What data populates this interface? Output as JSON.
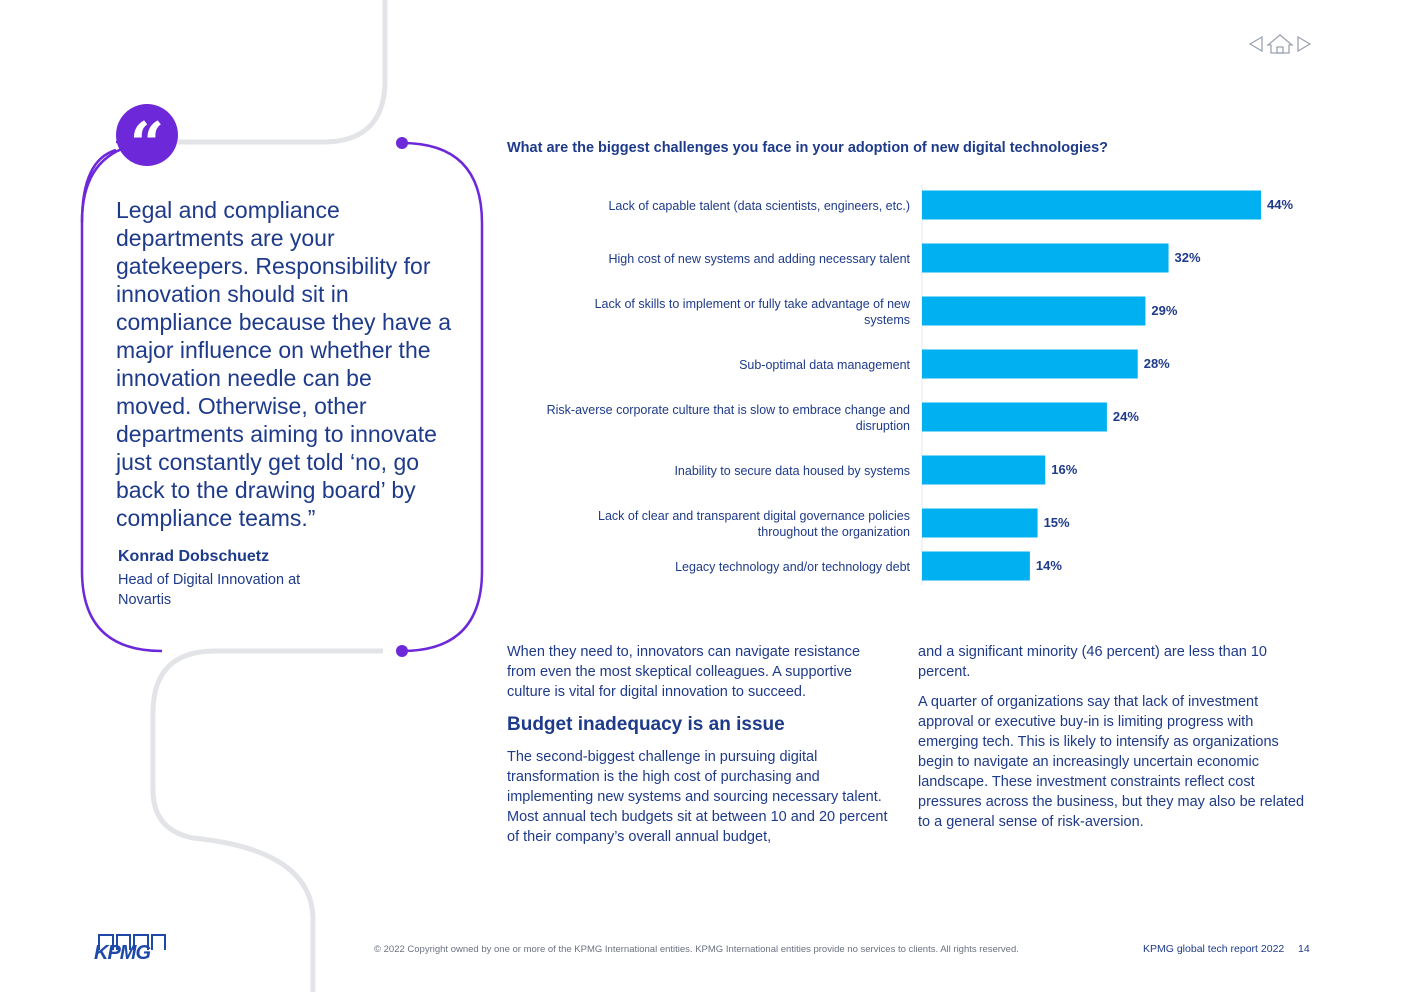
{
  "nav": {
    "prev_icon": "triangle-left-icon",
    "home_icon": "home-icon",
    "next_icon": "triangle-right-icon"
  },
  "quote": {
    "mark": "“",
    "text": "Legal and compliance departments are your gatekeepers. Responsibility for innovation should sit in compliance because they have a major influence on whether the innovation needle can be moved. Otherwise, other departments aiming to innovate just constantly get told ‘no, go back to the drawing board’ by compliance teams.”",
    "author": "Konrad Dobschuetz",
    "role": "Head of Digital Innovation at Novartis"
  },
  "chart_data": {
    "type": "bar",
    "orientation": "horizontal",
    "title": "What are the biggest challenges you face in your adoption of new digital technologies?",
    "categories": [
      "Lack of capable talent (data scientists, engineers, etc.)",
      "High cost of new systems and adding necessary talent",
      "Lack of skills to implement or fully take advantage of new systems",
      "Sub-optimal data management",
      "Risk-averse corporate culture that is slow to embrace change and disruption",
      "Inability to secure data housed by systems",
      "Lack of clear and transparent digital governance policies throughout the organization",
      "Legacy technology and/or technology debt"
    ],
    "category_lines": [
      [
        "Lack of capable talent (data scientists, engineers, etc.)"
      ],
      [
        "High cost of new systems and adding necessary talent"
      ],
      [
        "Lack of skills to implement or fully take advantage of new",
        "systems"
      ],
      [
        "Sub-optimal data management"
      ],
      [
        "Risk-averse corporate culture that is slow to embrace change and",
        "disruption"
      ],
      [
        "Inability to secure data housed by systems"
      ],
      [
        "Lack of clear and transparent digital governance policies",
        "throughout the organization"
      ],
      [
        "Legacy technology and/or technology debt"
      ]
    ],
    "values": [
      44,
      32,
      29,
      28,
      24,
      16,
      15,
      14
    ],
    "value_labels": [
      "44%",
      "32%",
      "29%",
      "28%",
      "24%",
      "16%",
      "15%",
      "14%"
    ],
    "unit": "%",
    "bar_color": "#00b0f0",
    "xlim": [
      0,
      44
    ]
  },
  "body": {
    "col1_para1": "When they need to, innovators can navigate resistance from even the most skeptical colleagues. A supportive culture is vital for digital innovation to succeed.",
    "heading": "Budget inadequacy is an issue",
    "col1_para2": "The second-biggest challenge in pursuing digital transformation is the high cost of purchasing and implementing new systems and sourcing necessary talent. Most annual tech budgets sit at between 10 and 20 percent of their company’s overall annual budget,",
    "col2_para1": "and a significant minority (46 percent) are less than 10 percent.",
    "col2_para2": "A quarter of organizations say that lack of investment approval or executive buy-in is limiting progress with emerging tech. This is likely to intensify as organizations begin to navigate an increasingly uncertain economic landscape. These investment constraints reflect cost pressures across the business, but they may also be related to a general sense of risk-aversion."
  },
  "footer": {
    "logo": "KPMG",
    "copyright": "© 2022 Copyright owned by one or more of the KPMG International entities. KPMG International entities provide no services to clients. All rights reserved.",
    "report_name": "KPMG global tech report 2022",
    "page_number": "14"
  },
  "colors": {
    "navy": "#1e3a8a",
    "purple": "#6d28d9",
    "bar": "#00b0f0",
    "decor_gray": "#e2e4e7"
  }
}
